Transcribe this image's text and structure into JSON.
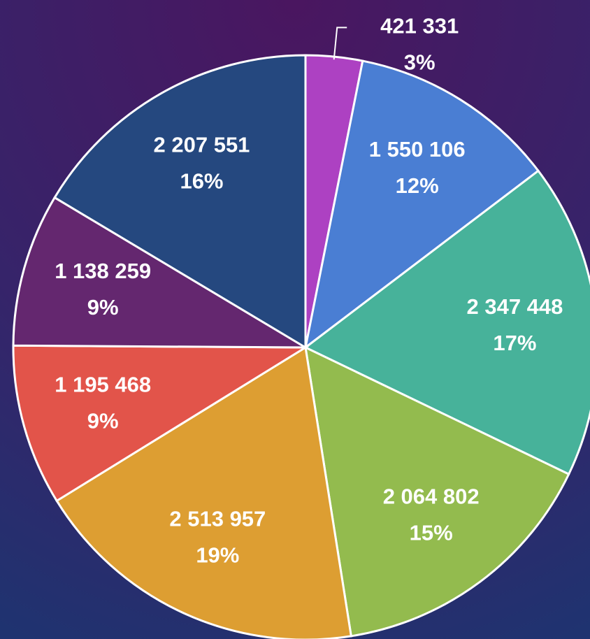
{
  "chart_data": {
    "type": "pie",
    "values": [
      421331,
      1550106,
      2347448,
      2064802,
      2513957,
      1195468,
      1138259,
      2207551
    ],
    "value_labels": [
      "421 331",
      "1 550 106",
      "2 347 448",
      "2 064 802",
      "2 513 957",
      "1 195 468",
      "1 138 259",
      "2 207 551"
    ],
    "percent_labels": [
      "3%",
      "12%",
      "17%",
      "15%",
      "19%",
      "9%",
      "9%",
      "16%"
    ],
    "colors": [
      "#ad41c2",
      "#4a7ed3",
      "#47b29a",
      "#93bb4e",
      "#dd9e32",
      "#e2544a",
      "#64276f",
      "#25487f"
    ]
  }
}
